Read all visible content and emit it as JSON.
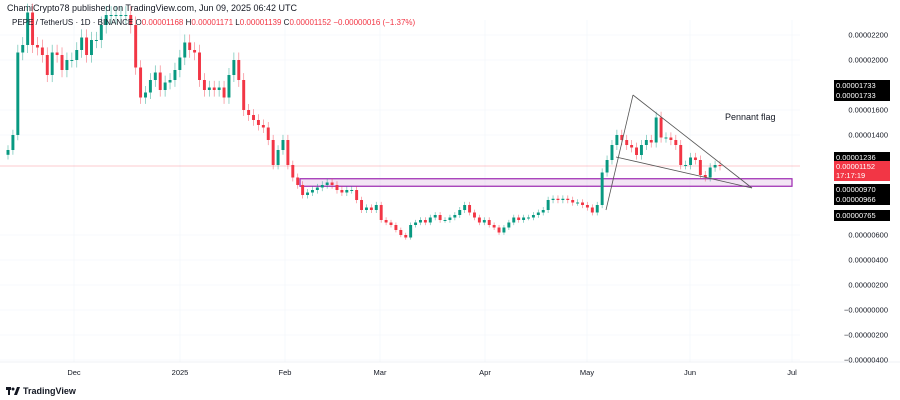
{
  "header": {
    "published": "ChamiCrypto78 published on TradingView.com, Jun 09, 2025 06:42 UTC",
    "symbol": "PEPE / TetherUS · 1D · BINANCE",
    "o_label": "O",
    "o": "0.00001168",
    "h_label": "H",
    "h": "0.00001171",
    "l_label": "L",
    "l": "0.00001139",
    "c_label": "C",
    "c": "0.00001152",
    "change": "−0.00000016 (−1.37%)"
  },
  "chart_data": {
    "type": "candlestick",
    "interval": "1D",
    "ylim": [
      -4.4e-06,
      2.35e-05
    ],
    "yticks": [
      "0.00002200",
      "0.00002000",
      "0.00001600",
      "0.00001400",
      "0.00000600",
      "0.00000400",
      "0.00000200",
      "−0.00000000",
      "−0.00000200",
      "−0.00000400"
    ],
    "ytick_values": [
      2.2e-05,
      2e-05,
      1.6e-05,
      1.4e-05,
      6e-06,
      4e-06,
      2e-06,
      0,
      -2e-06,
      -4e-06
    ],
    "xticks": [
      "Dec",
      "2025",
      "Feb",
      "Mar",
      "Apr",
      "May",
      "Jun",
      "Jul"
    ],
    "closes": [
      1.28e-05,
      1.4e-05,
      2.06e-05,
      2.12e-05,
      2.38e-05,
      2.12e-05,
      2.1e-05,
      2.04e-05,
      1.88e-05,
      2.06e-05,
      2.04e-05,
      1.92e-05,
      2e-05,
      2e-05,
      2.08e-05,
      2.18e-05,
      2.04e-05,
      2.16e-05,
      2.16e-05,
      2.28e-05,
      2.36e-05,
      2.36e-05,
      2.36e-05,
      2.36e-05,
      2.36e-05,
      2.28e-05,
      1.94e-05,
      1.7e-05,
      1.74e-05,
      1.84e-05,
      1.9e-05,
      1.76e-05,
      1.82e-05,
      1.84e-05,
      1.92e-05,
      2.02e-05,
      2.14e-05,
      2.08e-05,
      2.06e-05,
      1.84e-05,
      1.76e-05,
      1.78e-05,
      1.76e-05,
      1.78e-05,
      1.7e-05,
      1.88e-05,
      2e-05,
      1.84e-05,
      1.6e-05,
      1.56e-05,
      1.52e-05,
      1.48e-05,
      1.46e-05,
      1.36e-05,
      1.16e-05,
      1.28e-05,
      1.36e-05,
      1.16e-05,
      1.06e-05,
      1e-05,
      9.2e-06,
      9.4e-06,
      9.6e-06,
      9.8e-06,
      1e-05,
      1.02e-05,
      1e-05,
      9.6e-06,
      9.4e-06,
      9.6e-06,
      9.6e-06,
      8.8e-06,
      8e-06,
      8.2e-06,
      8e-06,
      8.4e-06,
      7.2e-06,
      7e-06,
      6.8e-06,
      6.4e-06,
      6e-06,
      5.8e-06,
      6.8e-06,
      7e-06,
      7.2e-06,
      7e-06,
      7.4e-06,
      7.6e-06,
      7.2e-06,
      7.2e-06,
      7.4e-06,
      7.6e-06,
      8e-06,
      8.4e-06,
      7.8e-06,
      7.4e-06,
      7e-06,
      7.2e-06,
      6.8e-06,
      6.6e-06,
      6.2e-06,
      6.6e-06,
      7e-06,
      7.4e-06,
      7.2e-06,
      7.4e-06,
      7.4e-06,
      7.6e-06,
      7.8e-06,
      8e-06,
      8.8e-06,
      8.9e-06,
      8.8e-06,
      8.9e-06,
      8.8e-06,
      8.6e-06,
      8.6e-06,
      8.4e-06,
      8.2e-06,
      7.8e-06,
      8.4e-06,
      1.1e-05,
      1.2e-05,
      1.32e-05,
      1.4e-05,
      1.36e-05,
      1.32e-05,
      1.3e-05,
      1.24e-05,
      1.32e-05,
      1.36e-05,
      1.34e-05,
      1.54e-05,
      1.38e-05,
      1.38e-05,
      1.36e-05,
      1.32e-05,
      1.16e-05,
      1.16e-05,
      1.22e-05,
      1.2e-05,
      1.08e-05,
      1.06e-05,
      1.14e-05,
      1.16e-05,
      1.152e-05
    ],
    "support_zone": [
      9.9e-06,
      1.05e-05
    ],
    "current_price": 1.152e-05,
    "annotation": "Pennant flag",
    "price_tags": [
      {
        "label": "0.00001733",
        "color": "#000000"
      },
      {
        "label": "0.00001733",
        "color": "#000000"
      },
      {
        "label": "0.00001236",
        "color": "#000000"
      },
      {
        "label": "0.00001152",
        "sub": "17:17:19",
        "color": "#f23645"
      },
      {
        "label": "0.00000970",
        "color": "#000000"
      },
      {
        "label": "0.00000966",
        "color": "#000000"
      },
      {
        "label": "0.00000765",
        "color": "#000000"
      }
    ],
    "colors": {
      "up": "#089981",
      "down": "#f23645",
      "zone": "#9c27b0",
      "trendline": "#555555"
    }
  },
  "footer": {
    "logo": "TradingView"
  }
}
